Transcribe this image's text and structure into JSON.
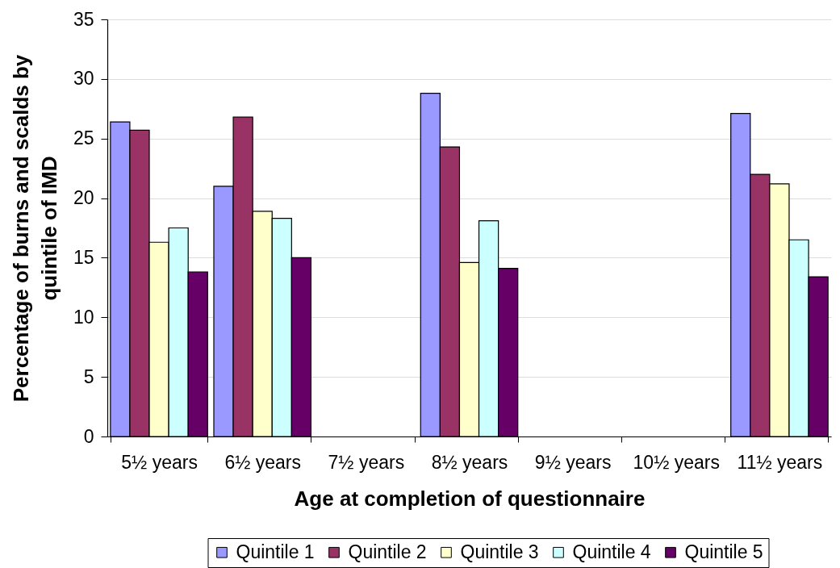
{
  "chart_data": {
    "type": "bar",
    "xlabel": "Age at completion of questionnaire",
    "ylabel": "Percentage of burns and scalds by quintile of IMD",
    "categories": [
      "5½ years",
      "6½ years",
      "7½ years",
      "8½ years",
      "9½ years",
      "10½ years",
      "11½ years"
    ],
    "series": [
      {
        "name": "Quintile 1",
        "color": "#9999ff",
        "values": [
          26.4,
          21.0,
          null,
          28.8,
          null,
          null,
          27.1
        ]
      },
      {
        "name": "Quintile 2",
        "color": "#993366",
        "values": [
          25.7,
          26.8,
          null,
          24.3,
          null,
          null,
          22.0
        ]
      },
      {
        "name": "Quintile 3",
        "color": "#ffffcc",
        "values": [
          16.3,
          18.9,
          null,
          14.6,
          null,
          null,
          21.2
        ]
      },
      {
        "name": "Quintile 4",
        "color": "#ccffff",
        "values": [
          17.5,
          18.3,
          null,
          18.1,
          null,
          null,
          16.5
        ]
      },
      {
        "name": "Quintile 5",
        "color": "#660066",
        "values": [
          13.8,
          15.0,
          null,
          14.1,
          null,
          null,
          13.4
        ]
      }
    ],
    "ylim": [
      0,
      35
    ],
    "yticks": [
      0,
      5,
      10,
      15,
      20,
      25,
      30,
      35
    ],
    "grid": "y",
    "legend": "bottom"
  }
}
